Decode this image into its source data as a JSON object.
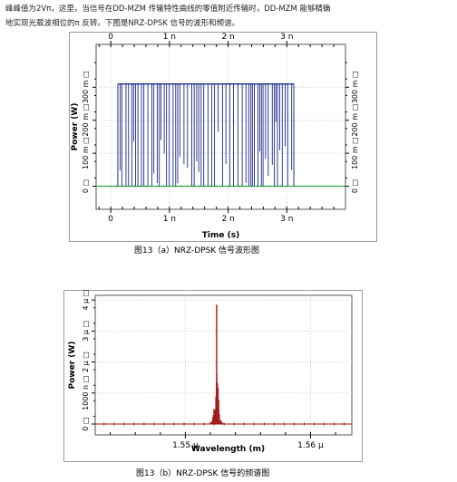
{
  "paragraph": {
    "line1": "峰峰值为2Vπ，这里，当信号在DD-MZM 传输特性曲线的零值附近传输时，DD-MZM 能够精确",
    "line2": "地实现光载波相位的π 反转。下图是NRZ-DPSK 信号的波形和频谱。"
  },
  "figures": [
    {
      "caption": "图13（a）NRZ-DPSK 信号波形图",
      "chart_data": {
        "type": "line",
        "xlabel": "Time (s)",
        "ylabel": "Power (W)",
        "x_ticks": [
          "0",
          "1 n",
          "2 n",
          "3 n"
        ],
        "y_ticks": [
          "0",
          "100 m",
          "200 m",
          "300 m"
        ],
        "xlim": [
          -0.25,
          4.0
        ],
        "ylim": [
          -0.07,
          0.43
        ],
        "series": [
          {
            "style": "waveform",
            "color": "#1c2a8c",
            "level": 0.31,
            "start": 0.12,
            "end": 3.12
          },
          {
            "style": "baseline",
            "color": "#2ea84a",
            "level": 0.0
          }
        ]
      }
    },
    {
      "caption": "图13（b）NRZ-DPSK 信号的频谱图",
      "chart_data": {
        "type": "line",
        "xlabel": "Wavelength (m)",
        "ylabel": "Power (W)",
        "x_ticks": [
          "1.55 µ",
          "1.56 µ"
        ],
        "x_tick_values": [
          1.55,
          1.56
        ],
        "y_ticks": [
          "0",
          "1000 n",
          "2 µ",
          "3 µ",
          "4 µ"
        ],
        "y_tick_values": [
          0,
          1,
          2,
          3,
          4
        ],
        "xlim": [
          1.5428,
          1.5633
        ],
        "ylim": [
          -0.35,
          4.15
        ],
        "series": [
          {
            "style": "spectrum",
            "color": "#a31616",
            "peak_x": 1.5525,
            "peak_y": 3.85
          }
        ]
      }
    }
  ]
}
